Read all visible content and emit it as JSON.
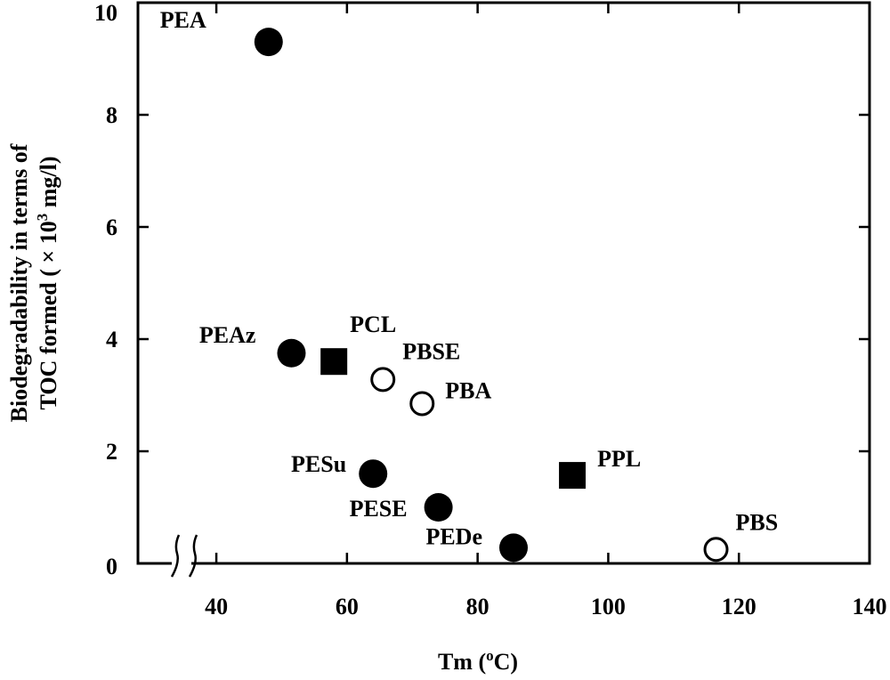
{
  "chart_data": {
    "type": "scatter",
    "title": "",
    "xlabel": "Tm (",
    "xlabel_sup": "o",
    "xlabel_end": "C)",
    "ylabel_line1": "Biodegradability in terms of",
    "ylabel_line2_pre": "TOC formed ( × 10",
    "ylabel_line2_sup": "3",
    "ylabel_line2_post": " mg/l)",
    "xlim": [
      28,
      140
    ],
    "ylim": [
      0,
      10
    ],
    "x_ticks": [
      40,
      60,
      80,
      100,
      120,
      140
    ],
    "y_ticks": [
      0,
      2,
      4,
      6,
      8,
      10
    ],
    "axis_break": "x-axis break near origin",
    "series": [
      {
        "name": "filled circle",
        "marker": "filled-circle",
        "points": [
          {
            "label": "PEA",
            "x": 48,
            "y": 9.3
          },
          {
            "label": "PEAz",
            "x": 51.5,
            "y": 3.75
          },
          {
            "label": "PESu",
            "x": 64,
            "y": 1.6
          },
          {
            "label": "PESE",
            "x": 74,
            "y": 1.0
          },
          {
            "label": "PEDe",
            "x": 85.5,
            "y": 0.28
          }
        ]
      },
      {
        "name": "filled square",
        "marker": "filled-square",
        "points": [
          {
            "label": "PCL",
            "x": 58,
            "y": 3.6
          },
          {
            "label": "PPL",
            "x": 94.5,
            "y": 1.57
          }
        ]
      },
      {
        "name": "open circle",
        "marker": "open-circle",
        "points": [
          {
            "label": "PBSE",
            "x": 65.5,
            "y": 3.28
          },
          {
            "label": "PBA",
            "x": 71.5,
            "y": 2.85
          },
          {
            "label": "PBS",
            "x": 116.5,
            "y": 0.25
          }
        ]
      }
    ]
  }
}
